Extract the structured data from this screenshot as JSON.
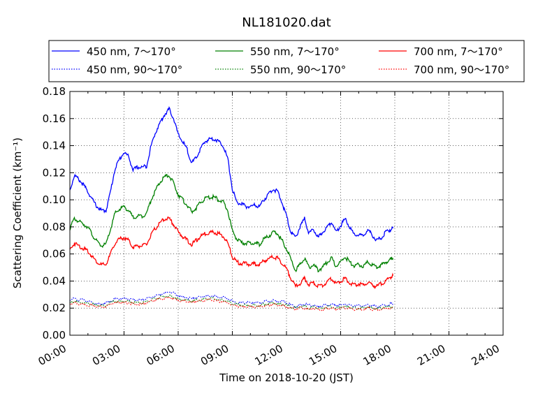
{
  "chart_data": {
    "type": "line",
    "title": "NL181020.dat",
    "xlabel": "Time on 2018-10-20 (JST)",
    "ylabel": "Scattering Coefficient (km⁻¹)",
    "x_unit": "hours",
    "xlim": [
      0,
      24
    ],
    "ylim": [
      0,
      0.18
    ],
    "x_ticks": [
      0,
      3,
      6,
      9,
      12,
      15,
      18,
      21,
      24
    ],
    "x_tick_labels": [
      "00:00",
      "03:00",
      "06:00",
      "09:00",
      "12:00",
      "15:00",
      "18:00",
      "21:00",
      "24:00"
    ],
    "y_ticks": [
      0.0,
      0.02,
      0.04,
      0.06,
      0.08,
      0.1,
      0.12,
      0.14,
      0.16,
      0.18
    ],
    "y_tick_labels": [
      "0.00",
      "0.02",
      "0.04",
      "0.06",
      "0.08",
      "0.10",
      "0.12",
      "0.14",
      "0.16",
      "0.18"
    ],
    "grid": true,
    "legend_position": "top",
    "x": [
      0.0,
      0.25,
      0.5,
      0.75,
      1.0,
      1.25,
      1.5,
      1.75,
      2.0,
      2.25,
      2.5,
      2.75,
      3.0,
      3.25,
      3.5,
      3.75,
      4.0,
      4.25,
      4.5,
      4.75,
      5.0,
      5.25,
      5.5,
      5.75,
      6.0,
      6.25,
      6.5,
      6.75,
      7.0,
      7.25,
      7.5,
      7.75,
      8.0,
      8.25,
      8.5,
      8.75,
      9.0,
      9.25,
      9.5,
      9.75,
      10.0,
      10.25,
      10.5,
      10.75,
      11.0,
      11.25,
      11.5,
      11.75,
      12.0,
      12.25,
      12.5,
      12.75,
      13.0,
      13.25,
      13.5,
      13.75,
      14.0,
      14.25,
      14.5,
      14.75,
      15.0,
      15.25,
      15.5,
      15.75,
      16.0,
      16.25,
      16.5,
      16.75,
      17.0,
      17.25,
      17.5,
      17.75,
      17.9
    ],
    "series": [
      {
        "name": "450 nm, 7～170°",
        "color": "#0000ff",
        "dash": "solid",
        "values": [
          0.107,
          0.118,
          0.115,
          0.111,
          0.106,
          0.1,
          0.095,
          0.092,
          0.092,
          0.106,
          0.123,
          0.13,
          0.135,
          0.132,
          0.122,
          0.124,
          0.124,
          0.125,
          0.14,
          0.15,
          0.157,
          0.163,
          0.167,
          0.16,
          0.148,
          0.143,
          0.137,
          0.127,
          0.131,
          0.138,
          0.143,
          0.145,
          0.145,
          0.143,
          0.14,
          0.13,
          0.108,
          0.098,
          0.097,
          0.095,
          0.095,
          0.096,
          0.095,
          0.1,
          0.104,
          0.108,
          0.106,
          0.098,
          0.088,
          0.076,
          0.072,
          0.08,
          0.086,
          0.075,
          0.078,
          0.072,
          0.076,
          0.08,
          0.084,
          0.076,
          0.081,
          0.086,
          0.08,
          0.074,
          0.074,
          0.073,
          0.078,
          0.074,
          0.07,
          0.072,
          0.076,
          0.078,
          0.079
        ]
      },
      {
        "name": "550 nm, 7～170°",
        "color": "#008000",
        "dash": "solid",
        "values": [
          0.079,
          0.086,
          0.084,
          0.082,
          0.08,
          0.074,
          0.069,
          0.066,
          0.067,
          0.078,
          0.09,
          0.093,
          0.095,
          0.092,
          0.087,
          0.088,
          0.088,
          0.09,
          0.1,
          0.107,
          0.113,
          0.117,
          0.118,
          0.112,
          0.104,
          0.1,
          0.096,
          0.091,
          0.094,
          0.098,
          0.101,
          0.102,
          0.102,
          0.1,
          0.098,
          0.092,
          0.077,
          0.071,
          0.068,
          0.068,
          0.068,
          0.068,
          0.067,
          0.071,
          0.073,
          0.076,
          0.075,
          0.07,
          0.064,
          0.056,
          0.048,
          0.052,
          0.057,
          0.05,
          0.052,
          0.048,
          0.05,
          0.054,
          0.057,
          0.051,
          0.054,
          0.058,
          0.054,
          0.051,
          0.052,
          0.051,
          0.054,
          0.052,
          0.05,
          0.052,
          0.054,
          0.056,
          0.057
        ]
      },
      {
        "name": "700 nm, 7～170°",
        "color": "#ff0000",
        "dash": "solid",
        "values": [
          0.063,
          0.068,
          0.066,
          0.064,
          0.062,
          0.058,
          0.054,
          0.052,
          0.052,
          0.06,
          0.068,
          0.071,
          0.072,
          0.07,
          0.065,
          0.066,
          0.066,
          0.067,
          0.074,
          0.079,
          0.083,
          0.086,
          0.086,
          0.082,
          0.076,
          0.073,
          0.07,
          0.067,
          0.07,
          0.073,
          0.075,
          0.076,
          0.076,
          0.075,
          0.073,
          0.068,
          0.058,
          0.054,
          0.053,
          0.053,
          0.052,
          0.053,
          0.052,
          0.055,
          0.056,
          0.058,
          0.057,
          0.053,
          0.049,
          0.042,
          0.036,
          0.038,
          0.042,
          0.037,
          0.039,
          0.036,
          0.037,
          0.039,
          0.042,
          0.038,
          0.04,
          0.042,
          0.039,
          0.037,
          0.038,
          0.037,
          0.039,
          0.037,
          0.036,
          0.038,
          0.04,
          0.043,
          0.044
        ]
      },
      {
        "name": "450 nm, 90～170°",
        "color": "#0000ff",
        "dash": "dotted",
        "values": [
          0.026,
          0.027,
          0.026,
          0.026,
          0.025,
          0.024,
          0.023,
          0.023,
          0.024,
          0.025,
          0.027,
          0.027,
          0.027,
          0.027,
          0.026,
          0.026,
          0.026,
          0.027,
          0.028,
          0.029,
          0.03,
          0.031,
          0.032,
          0.031,
          0.029,
          0.028,
          0.028,
          0.027,
          0.028,
          0.028,
          0.029,
          0.029,
          0.029,
          0.028,
          0.028,
          0.027,
          0.025,
          0.024,
          0.024,
          0.024,
          0.024,
          0.024,
          0.024,
          0.025,
          0.025,
          0.026,
          0.025,
          0.025,
          0.024,
          0.022,
          0.021,
          0.022,
          0.023,
          0.022,
          0.022,
          0.021,
          0.022,
          0.022,
          0.023,
          0.022,
          0.022,
          0.023,
          0.022,
          0.022,
          0.022,
          0.022,
          0.022,
          0.022,
          0.021,
          0.022,
          0.022,
          0.023,
          0.023
        ]
      },
      {
        "name": "550 nm, 90～170°",
        "color": "#008000",
        "dash": "dotted",
        "values": [
          0.024,
          0.025,
          0.024,
          0.024,
          0.023,
          0.023,
          0.022,
          0.022,
          0.022,
          0.024,
          0.025,
          0.025,
          0.025,
          0.025,
          0.024,
          0.024,
          0.024,
          0.025,
          0.026,
          0.027,
          0.028,
          0.029,
          0.029,
          0.028,
          0.027,
          0.026,
          0.026,
          0.025,
          0.026,
          0.026,
          0.027,
          0.027,
          0.027,
          0.026,
          0.026,
          0.025,
          0.023,
          0.023,
          0.022,
          0.022,
          0.022,
          0.022,
          0.022,
          0.023,
          0.023,
          0.024,
          0.023,
          0.023,
          0.022,
          0.021,
          0.02,
          0.021,
          0.021,
          0.02,
          0.021,
          0.02,
          0.02,
          0.021,
          0.021,
          0.02,
          0.021,
          0.021,
          0.021,
          0.02,
          0.02,
          0.02,
          0.021,
          0.02,
          0.02,
          0.02,
          0.021,
          0.021,
          0.021
        ]
      },
      {
        "name": "700 nm, 90～170°",
        "color": "#ff0000",
        "dash": "dotted",
        "values": [
          0.023,
          0.024,
          0.023,
          0.023,
          0.022,
          0.022,
          0.021,
          0.021,
          0.021,
          0.023,
          0.024,
          0.024,
          0.024,
          0.024,
          0.023,
          0.023,
          0.023,
          0.024,
          0.025,
          0.026,
          0.027,
          0.027,
          0.028,
          0.027,
          0.026,
          0.025,
          0.025,
          0.024,
          0.025,
          0.025,
          0.026,
          0.026,
          0.026,
          0.025,
          0.025,
          0.024,
          0.022,
          0.022,
          0.021,
          0.021,
          0.021,
          0.021,
          0.021,
          0.022,
          0.022,
          0.023,
          0.022,
          0.022,
          0.021,
          0.02,
          0.019,
          0.02,
          0.02,
          0.019,
          0.02,
          0.019,
          0.019,
          0.02,
          0.02,
          0.019,
          0.02,
          0.02,
          0.02,
          0.019,
          0.019,
          0.019,
          0.02,
          0.019,
          0.019,
          0.019,
          0.02,
          0.02,
          0.02
        ]
      }
    ],
    "legend_columns": [
      0,
      2,
      1,
      4,
      2,
      5
    ]
  }
}
